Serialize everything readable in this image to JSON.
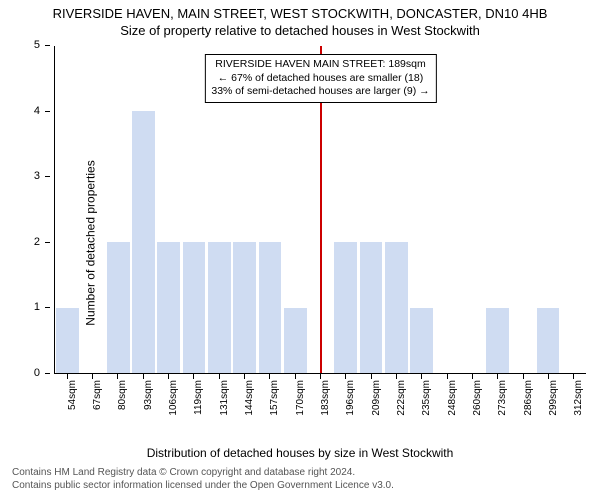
{
  "title_main": "RIVERSIDE HAVEN, MAIN STREET, WEST STOCKWITH, DONCASTER, DN10 4HB",
  "title_sub": "Size of property relative to detached houses in West Stockwith",
  "y_label": "Number of detached properties",
  "x_axis_label": "Distribution of detached houses by size in West Stockwith",
  "chart": {
    "type": "bar",
    "y_max": 5,
    "y_ticks": [
      0,
      1,
      2,
      3,
      4,
      5
    ],
    "bar_color": "#cfdcf2",
    "marker_color": "#cc0000",
    "marker_index": 10,
    "categories": [
      "54sqm",
      "67sqm",
      "80sqm",
      "93sqm",
      "106sqm",
      "119sqm",
      "131sqm",
      "144sqm",
      "157sqm",
      "170sqm",
      "183sqm",
      "196sqm",
      "209sqm",
      "222sqm",
      "235sqm",
      "248sqm",
      "260sqm",
      "273sqm",
      "286sqm",
      "299sqm",
      "312sqm"
    ],
    "values": [
      1,
      0,
      2,
      4,
      2,
      2,
      2,
      2,
      2,
      1,
      0,
      2,
      2,
      2,
      1,
      0,
      0,
      1,
      0,
      1,
      0
    ]
  },
  "info_box": {
    "line1": "RIVERSIDE HAVEN MAIN STREET: 189sqm",
    "line2": "← 67% of detached houses are smaller (18)",
    "line3": "33% of semi-detached houses are larger (9) →"
  },
  "footer": {
    "line1": "Contains HM Land Registry data © Crown copyright and database right 2024.",
    "line2": "Contains public sector information licensed under the Open Government Licence v3.0."
  },
  "colors": {
    "background": "#ffffff",
    "axis": "#000000",
    "text": "#000000",
    "footer_text": "#555555"
  },
  "fonts": {
    "title_size_pt": 13,
    "axis_label_size_pt": 12,
    "tick_size_pt": 10,
    "info_size_pt": 10.5,
    "footer_size_pt": 10,
    "family": "Arial"
  }
}
